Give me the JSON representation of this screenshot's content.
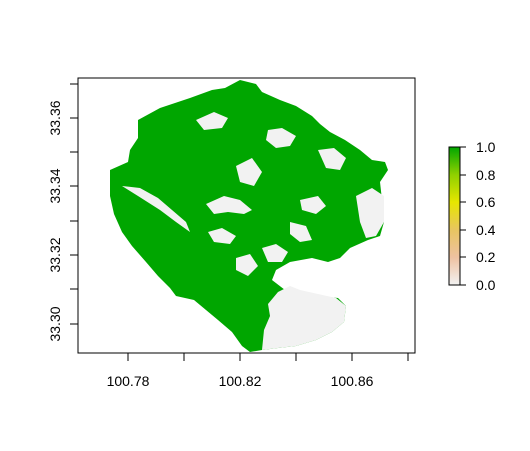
{
  "plot": {
    "x_ticks": [
      "100.78",
      "100.82",
      "100.86"
    ],
    "y_ticks": [
      "33.30",
      "33.32",
      "33.34",
      "33.36"
    ]
  },
  "legend": {
    "ticks": [
      "1.0",
      "0.8",
      "0.6",
      "0.4",
      "0.2",
      "0.0"
    ],
    "range": [
      0,
      1
    ]
  },
  "colors": {
    "high": "#00a600",
    "mid_high": "#8fd000",
    "mid": "#e6e600",
    "mid_low": "#e8b36b",
    "low": "#f2f2f2"
  }
}
